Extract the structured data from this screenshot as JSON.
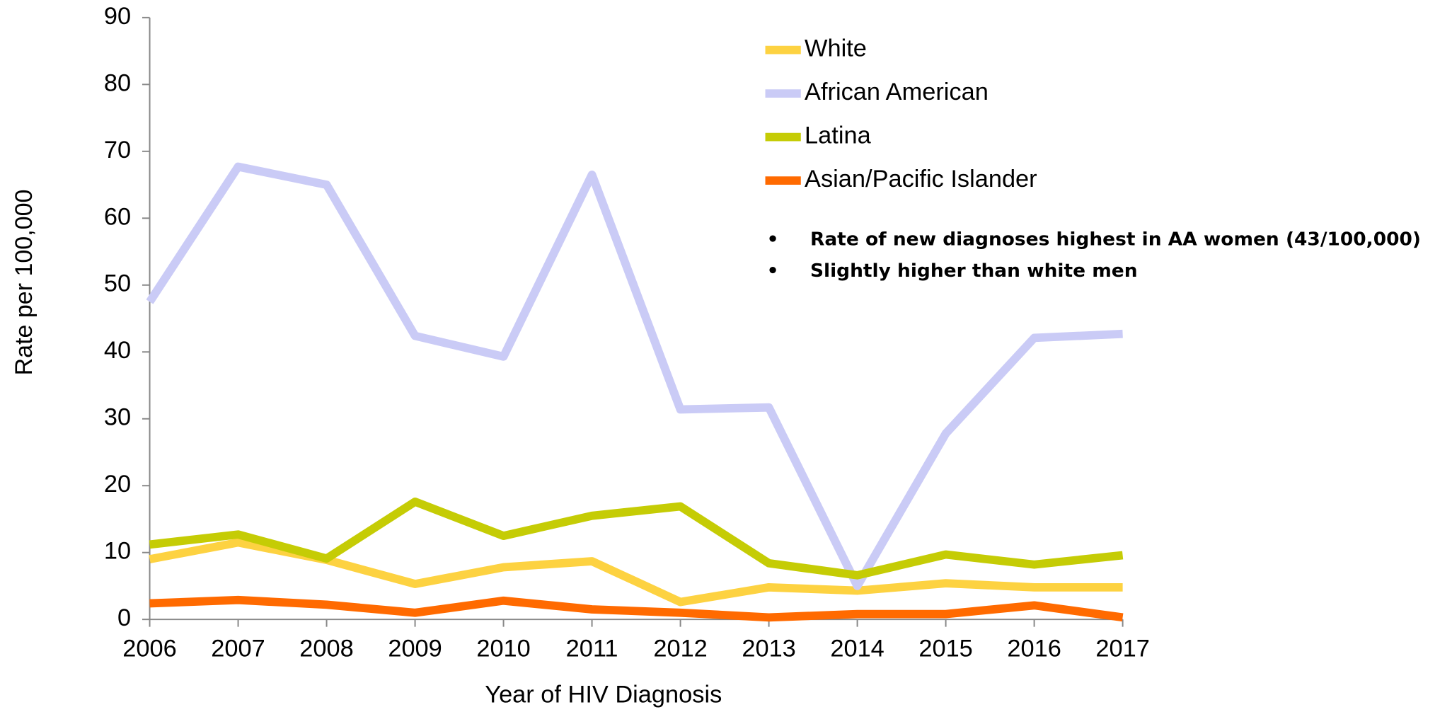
{
  "chart_data": {
    "type": "line",
    "x": [
      2006,
      2007,
      2008,
      2009,
      2010,
      2011,
      2012,
      2013,
      2014,
      2015,
      2016,
      2017
    ],
    "xlim": [
      2006,
      2017
    ],
    "xticks": [
      2006,
      2007,
      2008,
      2009,
      2010,
      2011,
      2012,
      2013,
      2014,
      2015,
      2016,
      2017
    ],
    "ylim": [
      0,
      90
    ],
    "yticks": [
      0,
      10,
      20,
      30,
      40,
      50,
      60,
      70,
      80,
      90
    ],
    "x_label": "Year of HIV Diagnosis",
    "y_label": "Rate per 100,000",
    "series": [
      {
        "name": "White",
        "color": "#fdd241",
        "values": [
          9.0,
          11.5,
          8.9,
          5.3,
          7.8,
          8.7,
          2.6,
          4.8,
          4.3,
          5.4,
          4.8,
          4.8
        ]
      },
      {
        "name": "African American",
        "color": "#cacbf6",
        "values": [
          47.5,
          67.7,
          65.0,
          42.4,
          39.3,
          66.5,
          31.4,
          31.7,
          5.0,
          27.8,
          42.1,
          42.7
        ]
      },
      {
        "name": "Latina",
        "color": "#c5cc05",
        "values": [
          11.2,
          12.7,
          9.1,
          17.6,
          12.5,
          15.5,
          16.9,
          8.4,
          6.6,
          9.7,
          8.2,
          9.6
        ]
      },
      {
        "name": "Asian/Pacific Islander",
        "color": "#ff6a00",
        "values": [
          2.4,
          2.9,
          2.2,
          1.0,
          2.8,
          1.5,
          1.0,
          0.3,
          0.8,
          0.8,
          2.1,
          0.3
        ]
      }
    ],
    "annotations": [
      "Rate of new diagnoses highest in AA women (43/100,000)",
      "Slightly higher than white men"
    ]
  }
}
